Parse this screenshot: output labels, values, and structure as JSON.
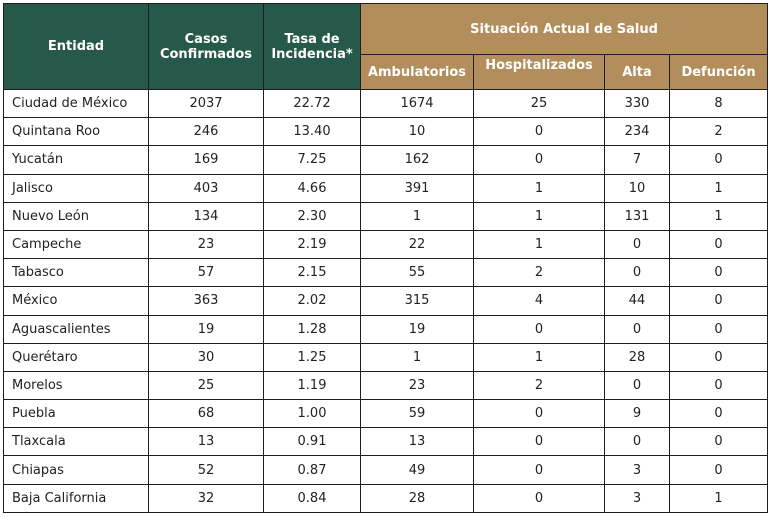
{
  "headers": {
    "entidad": "Entidad",
    "casos": "Casos Confirmados",
    "tasa": "Tasa de Incidencia*",
    "situacion": "Situación Actual de Salud",
    "ambulatorios": "Ambulatorios",
    "hospitalizados": "Hospitalizados",
    "alta": "Alta",
    "defuncion": "Defunción"
  },
  "colors": {
    "header_green": "#26594a",
    "header_tan": "#b38e5d"
  },
  "rows": [
    {
      "entidad": "Ciudad de México",
      "casos": "2037",
      "tasa": "22.72",
      "amb": "1674",
      "hosp": "25",
      "alta": "330",
      "def": "8"
    },
    {
      "entidad": "Quintana Roo",
      "casos": "246",
      "tasa": "13.40",
      "amb": "10",
      "hosp": "0",
      "alta": "234",
      "def": "2"
    },
    {
      "entidad": "Yucatán",
      "casos": "169",
      "tasa": "7.25",
      "amb": "162",
      "hosp": "0",
      "alta": "7",
      "def": "0"
    },
    {
      "entidad": "Jalisco",
      "casos": "403",
      "tasa": "4.66",
      "amb": "391",
      "hosp": "1",
      "alta": "10",
      "def": "1"
    },
    {
      "entidad": "Nuevo León",
      "casos": "134",
      "tasa": "2.30",
      "amb": "1",
      "hosp": "1",
      "alta": "131",
      "def": "1"
    },
    {
      "entidad": "Campeche",
      "casos": "23",
      "tasa": "2.19",
      "amb": "22",
      "hosp": "1",
      "alta": "0",
      "def": "0"
    },
    {
      "entidad": "Tabasco",
      "casos": "57",
      "tasa": "2.15",
      "amb": "55",
      "hosp": "2",
      "alta": "0",
      "def": "0"
    },
    {
      "entidad": "México",
      "casos": "363",
      "tasa": "2.02",
      "amb": "315",
      "hosp": "4",
      "alta": "44",
      "def": "0"
    },
    {
      "entidad": "Aguascalientes",
      "casos": "19",
      "tasa": "1.28",
      "amb": "19",
      "hosp": "0",
      "alta": "0",
      "def": "0"
    },
    {
      "entidad": "Querétaro",
      "casos": "30",
      "tasa": "1.25",
      "amb": "1",
      "hosp": "1",
      "alta": "28",
      "def": "0"
    },
    {
      "entidad": "Morelos",
      "casos": "25",
      "tasa": "1.19",
      "amb": "23",
      "hosp": "2",
      "alta": "0",
      "def": "0"
    },
    {
      "entidad": "Puebla",
      "casos": "68",
      "tasa": "1.00",
      "amb": "59",
      "hosp": "0",
      "alta": "9",
      "def": "0"
    },
    {
      "entidad": "Tlaxcala",
      "casos": "13",
      "tasa": "0.91",
      "amb": "13",
      "hosp": "0",
      "alta": "0",
      "def": "0"
    },
    {
      "entidad": "Chiapas",
      "casos": "52",
      "tasa": "0.87",
      "amb": "49",
      "hosp": "0",
      "alta": "3",
      "def": "0"
    },
    {
      "entidad": "Baja California",
      "casos": "32",
      "tasa": "0.84",
      "amb": "28",
      "hosp": "0",
      "alta": "3",
      "def": "1"
    }
  ]
}
